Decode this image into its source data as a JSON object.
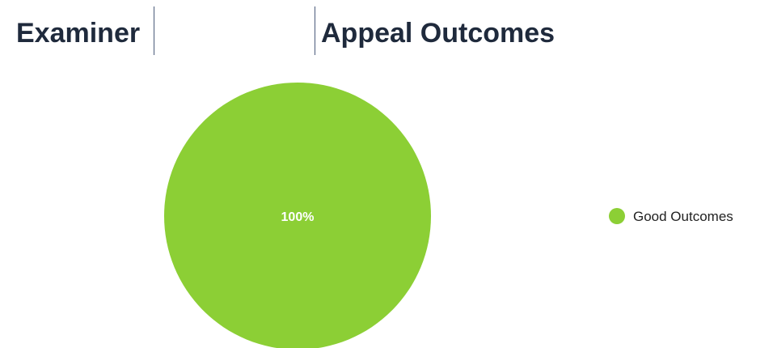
{
  "header": {
    "title_parts": [
      "Examiner",
      "Appeal Outcomes"
    ]
  },
  "chart_data": {
    "type": "pie",
    "categories": [
      "Good Outcomes"
    ],
    "values": [
      100
    ],
    "value_labels": [
      "100%"
    ],
    "colors": [
      "#8ccf35"
    ],
    "legend": "right"
  }
}
